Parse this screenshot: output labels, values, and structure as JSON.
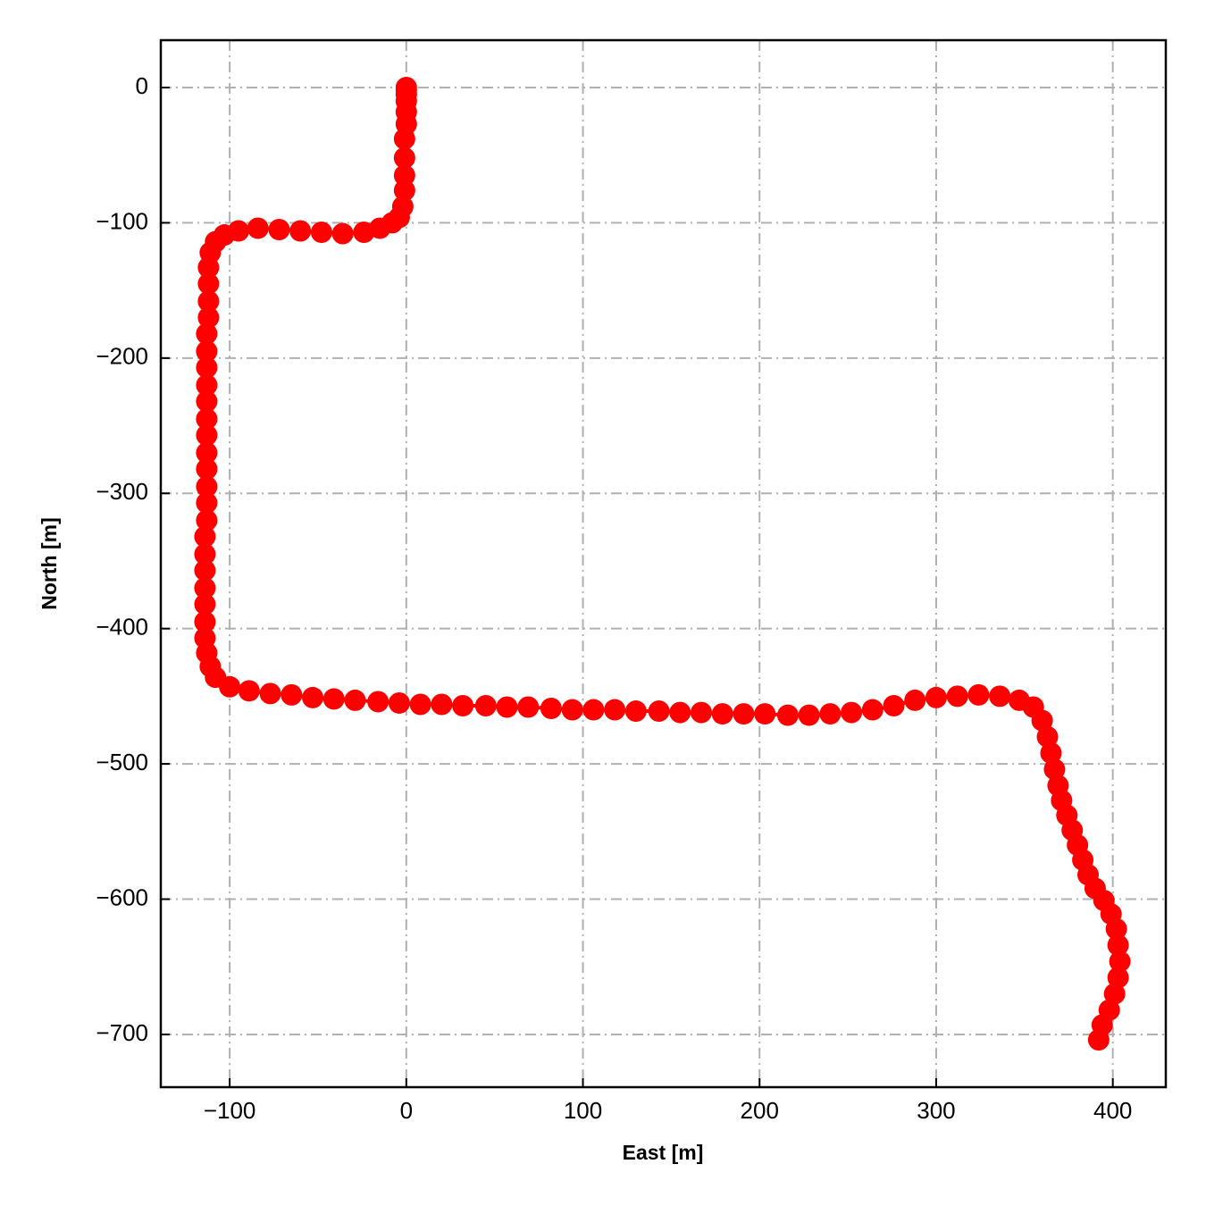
{
  "chart_data": {
    "type": "line",
    "marker": "o",
    "color": "#ff0000",
    "xlabel": "East [m]",
    "ylabel": "North [m]",
    "x": [
      0,
      0,
      0,
      0,
      0,
      0,
      -1,
      -1,
      -1,
      -1,
      -2,
      -4,
      -8,
      -15,
      -24,
      -36,
      -48,
      -60,
      -72,
      -84,
      -95,
      -103,
      -108,
      -111,
      -112,
      -112,
      -112,
      -112,
      -113,
      -113,
      -113,
      -113,
      -113,
      -113,
      -113,
      -113,
      -113,
      -113,
      -113,
      -113,
      -114,
      -114,
      -114,
      -114,
      -114,
      -114,
      -114,
      -113,
      -111,
      -108,
      -100,
      -89,
      -77,
      -65,
      -53,
      -41,
      -29,
      -16,
      -4,
      8,
      20,
      32,
      45,
      57,
      69,
      82,
      94,
      106,
      118,
      130,
      143,
      155,
      167,
      179,
      191,
      203,
      216,
      228,
      240,
      252,
      264,
      276,
      288,
      300,
      312,
      324,
      336,
      347,
      355,
      360,
      363,
      365,
      367,
      369,
      371,
      374,
      377,
      380,
      383,
      386,
      390,
      395,
      399,
      402,
      403,
      404,
      403,
      401,
      398,
      394,
      392
    ],
    "values": [
      0,
      -2,
      -5,
      -10,
      -18,
      -27,
      -38,
      -52,
      -65,
      -76,
      -88,
      -96,
      -100,
      -104,
      -107,
      -108,
      -107,
      -106,
      -105,
      -104,
      -106,
      -109,
      -114,
      -122,
      -133,
      -145,
      -158,
      -170,
      -182,
      -195,
      -207,
      -220,
      -232,
      -245,
      -257,
      -270,
      -282,
      -295,
      -307,
      -320,
      -332,
      -345,
      -357,
      -370,
      -382,
      -395,
      -407,
      -418,
      -428,
      -436,
      -443,
      -446,
      -448,
      -449,
      -451,
      -452,
      -453,
      -454,
      -455,
      -456,
      -456,
      -457,
      -457,
      -458,
      -458,
      -459,
      -460,
      -460,
      -460,
      -461,
      -461,
      -462,
      -462,
      -463,
      -463,
      -463,
      -464,
      -464,
      -463,
      -462,
      -460,
      -457,
      -453,
      -451,
      -450,
      -449,
      -450,
      -453,
      -458,
      -468,
      -480,
      -492,
      -504,
      -516,
      -527,
      -538,
      -549,
      -560,
      -571,
      -582,
      -592,
      -601,
      -611,
      -622,
      -634,
      -646,
      -658,
      -670,
      -682,
      -693,
      -704
    ],
    "xlim": [
      -139,
      430
    ],
    "ylim": [
      -739,
      35
    ],
    "xticks": [
      {
        "value": -100,
        "label": "−100"
      },
      0,
      100,
      200,
      300,
      400
    ],
    "yticks": [
      0,
      {
        "value": -100,
        "label": "−100"
      },
      {
        "value": -200,
        "label": "−200"
      },
      {
        "value": -300,
        "label": "−300"
      },
      {
        "value": -400,
        "label": "−400"
      },
      {
        "value": -500,
        "label": "−500"
      },
      {
        "value": -600,
        "label": "−600"
      },
      {
        "value": -700,
        "label": "−700"
      }
    ],
    "grid": true
  }
}
